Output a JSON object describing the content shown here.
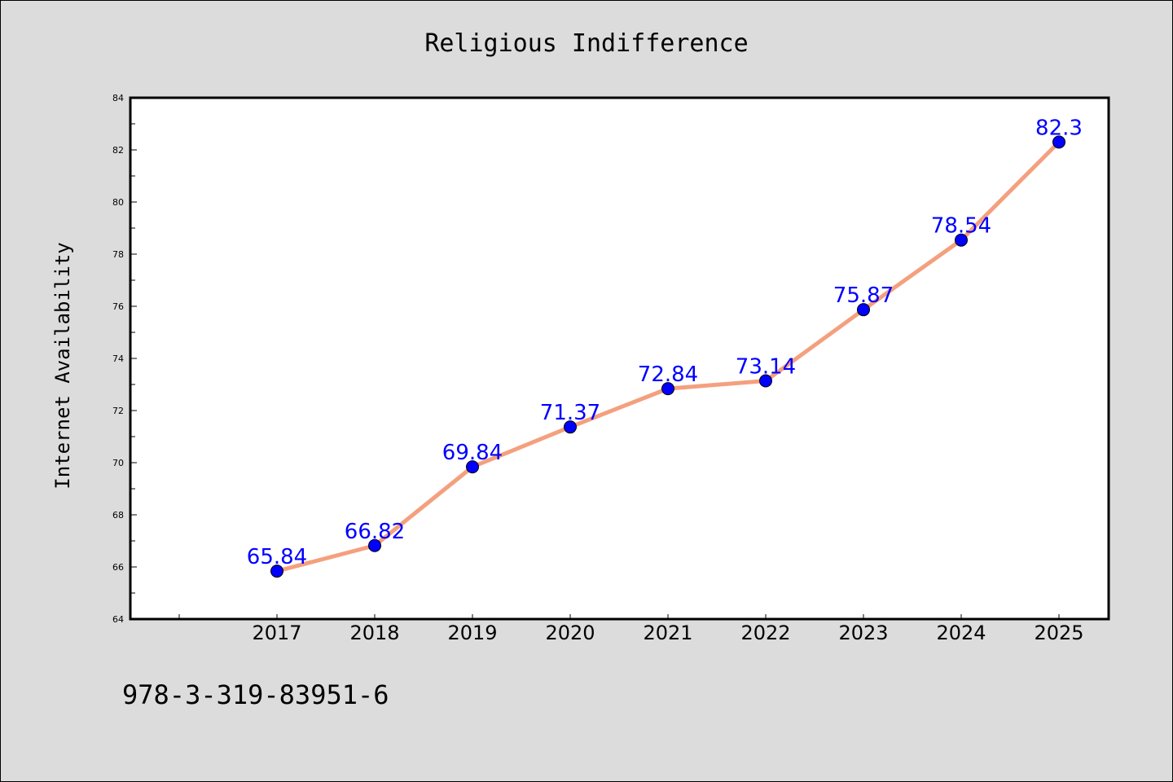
{
  "chart_data": {
    "type": "line",
    "title": "Religious Indifference",
    "xlabel": "",
    "ylabel": "Internet Availability",
    "categories": [
      "2017",
      "2018",
      "2019",
      "2020",
      "2021",
      "2022",
      "2023",
      "2024",
      "2025"
    ],
    "series": [
      {
        "values": [
          65.84,
          66.82,
          69.84,
          71.37,
          72.84,
          73.14,
          75.87,
          78.54,
          82.3
        ],
        "labels": [
          "65.84",
          "66.82",
          "69.84",
          "71.37",
          "72.84",
          "73.14",
          "75.87",
          "78.54",
          "82.3"
        ]
      }
    ],
    "ylim": [
      64,
      84
    ],
    "yticks": [
      "64",
      "66",
      "68",
      "70",
      "72",
      "74",
      "76",
      "78",
      "80",
      "82",
      "84"
    ],
    "grid": false,
    "legend": "none"
  },
  "footer": {
    "text": "978-3-319-83951-6"
  },
  "colors": {
    "background": "#dcdcdc",
    "plot_area": "#ffffff",
    "line": "#f4a07e",
    "marker": "#0000ff",
    "data_label": "#0000ff",
    "axis": "#000000"
  }
}
